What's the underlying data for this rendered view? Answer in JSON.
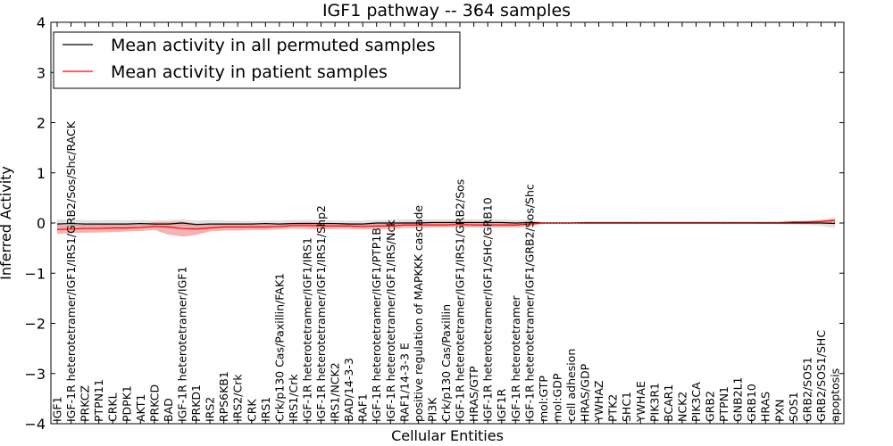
{
  "chart_data": {
    "type": "line",
    "title": "IGF1 pathway -- 364 samples",
    "xlabel": "Cellular Entities",
    "ylabel": "Inferred Activity",
    "ylim": [
      -4,
      4
    ],
    "yticks": [
      "4",
      "3",
      "2",
      "1",
      "0",
      "−1",
      "−2",
      "−3",
      "−4"
    ],
    "grid": false,
    "legend": {
      "position": "top-left"
    },
    "categories": [
      "IGF1",
      "IGF-1R heterotetramer/IGF1/IRS1/GRB2/Sos/Shc/RACK",
      "PRKCZ",
      "PTPN11",
      "CRKL",
      "PDPK1",
      "AKT1",
      "PRKCD",
      "BAD",
      "IGF-1R heterotetramer/IGF1",
      "PRKD1",
      "IRS2",
      "RPS6KB1",
      "IRS2/Crk",
      "CRK",
      "IRS1",
      "Crk/p130 Cas/Paxillin/FAK1",
      "IRS1/Crk",
      "IGF-1R heterotetramer/IGF1/IRS1",
      "IGF-1R heterotetramer/IGF1/IRS1/Shp2",
      "IRS1/NCK2",
      "BAD/14-3-3",
      "RAF1",
      "IGF-1R heterotetramer/IGF1/PTP1B",
      "IGF-1R heterotetramer/IGF1/IRS/Nck",
      "RAF1/14-3-3 E",
      "positive regulation of MAPKKK cascade",
      "PI3K",
      "Crk/p130 Cas/Paxillin",
      "IGF-1R heterotetramer/IGF1/IRS1/GRB2/Sos",
      "HRAS/GTP",
      "IGF-1R heterotetramer/IGF1/SHC/GRB10",
      "IGF1R",
      "IGF-1R heterotetramer",
      "IGF-1R heterotetramer/IGF1/GRB2/Sos/Shc",
      "mol:GTP",
      "mol:GDP",
      "cell adhesion",
      "HRAS/GDP",
      "YWHAZ",
      "PTK2",
      "SHC1",
      "YWHAE",
      "PIK3R1",
      "BCAR1",
      "NCK2",
      "PIK3CA",
      "GRB2",
      "PTPN1",
      "GNB2L1",
      "GRB10",
      "HRAS",
      "PXN",
      "SOS1",
      "GRB2/SOS1",
      "GRB2/SOS1/SHC",
      "apoptosis"
    ],
    "series": [
      {
        "name": "Mean activity in all permuted samples",
        "color": "#000000",
        "band_color": "#c8c8c8",
        "values": [
          -0.02,
          -0.01,
          -0.02,
          -0.02,
          -0.02,
          -0.02,
          -0.01,
          -0.02,
          -0.02,
          0.0,
          -0.03,
          -0.02,
          -0.02,
          -0.02,
          -0.02,
          -0.01,
          -0.02,
          -0.01,
          -0.01,
          -0.01,
          -0.01,
          -0.02,
          -0.02,
          0.0,
          0.0,
          0.0,
          0.0,
          0.01,
          0.01,
          0.01,
          0.01,
          0.01,
          0.01,
          0.0,
          0.01,
          0.0,
          0.0,
          0.0,
          0.0,
          0.0,
          0.0,
          0.0,
          0.0,
          0.0,
          0.0,
          0.0,
          0.0,
          0.0,
          0.0,
          0.0,
          0.0,
          0.0,
          0.0,
          0.0,
          0.0,
          0.0,
          -0.01
        ],
        "lower": [
          -0.11,
          -0.09,
          -0.1,
          -0.09,
          -0.1,
          -0.09,
          -0.08,
          -0.09,
          -0.1,
          -0.07,
          -0.11,
          -0.1,
          -0.09,
          -0.09,
          -0.08,
          -0.07,
          -0.09,
          -0.08,
          -0.07,
          -0.07,
          -0.07,
          -0.08,
          -0.09,
          -0.06,
          -0.05,
          -0.05,
          -0.05,
          -0.04,
          -0.04,
          -0.04,
          -0.04,
          -0.04,
          -0.04,
          -0.04,
          -0.04,
          -0.01,
          -0.01,
          -0.01,
          -0.01,
          -0.01,
          -0.01,
          -0.01,
          -0.01,
          -0.01,
          -0.01,
          -0.01,
          -0.01,
          -0.01,
          -0.01,
          -0.01,
          -0.01,
          -0.02,
          -0.02,
          -0.03,
          -0.04,
          -0.06,
          -0.1
        ],
        "upper": [
          0.07,
          0.07,
          0.06,
          0.05,
          0.06,
          0.05,
          0.06,
          0.05,
          0.06,
          0.07,
          0.05,
          0.06,
          0.05,
          0.05,
          0.04,
          0.05,
          0.05,
          0.06,
          0.06,
          0.06,
          0.05,
          0.05,
          0.05,
          0.06,
          0.06,
          0.07,
          0.07,
          0.07,
          0.07,
          0.07,
          0.07,
          0.07,
          0.07,
          0.06,
          0.07,
          0.01,
          0.01,
          0.01,
          0.01,
          0.01,
          0.01,
          0.01,
          0.01,
          0.01,
          0.01,
          0.01,
          0.01,
          0.01,
          0.01,
          0.01,
          0.01,
          0.02,
          0.02,
          0.03,
          0.04,
          0.05,
          0.08
        ]
      },
      {
        "name": "Mean activity in patient samples",
        "color": "#ff0000",
        "band_color": "#f08080",
        "values": [
          -0.13,
          -0.12,
          -0.11,
          -0.11,
          -0.1,
          -0.1,
          -0.09,
          -0.07,
          -0.08,
          -0.11,
          -0.12,
          -0.1,
          -0.08,
          -0.08,
          -0.08,
          -0.08,
          -0.07,
          -0.05,
          -0.05,
          -0.06,
          -0.06,
          -0.06,
          -0.07,
          -0.06,
          -0.06,
          -0.04,
          -0.04,
          -0.04,
          -0.04,
          -0.03,
          -0.04,
          -0.04,
          -0.04,
          -0.04,
          -0.02,
          0.0,
          0.0,
          0.0,
          0.01,
          0.01,
          0.01,
          0.01,
          0.01,
          0.01,
          0.01,
          0.01,
          0.01,
          0.01,
          0.01,
          0.01,
          0.01,
          0.01,
          0.01,
          0.02,
          0.02,
          0.03,
          0.05
        ],
        "lower": [
          -0.22,
          -0.2,
          -0.19,
          -0.19,
          -0.18,
          -0.17,
          -0.16,
          -0.14,
          -0.23,
          -0.27,
          -0.24,
          -0.17,
          -0.15,
          -0.15,
          -0.14,
          -0.14,
          -0.13,
          -0.11,
          -0.12,
          -0.13,
          -0.12,
          -0.12,
          -0.13,
          -0.12,
          -0.12,
          -0.1,
          -0.1,
          -0.09,
          -0.09,
          -0.08,
          -0.09,
          -0.09,
          -0.09,
          -0.09,
          -0.07,
          -0.01,
          -0.01,
          -0.01,
          0.0,
          0.0,
          0.0,
          0.0,
          0.0,
          0.0,
          0.0,
          0.0,
          0.0,
          0.0,
          0.0,
          0.0,
          0.0,
          0.0,
          0.0,
          0.0,
          0.0,
          0.01,
          0.01
        ],
        "upper": [
          -0.04,
          -0.04,
          -0.03,
          -0.03,
          -0.02,
          -0.03,
          -0.02,
          0.02,
          0.02,
          0.03,
          -0.01,
          -0.03,
          -0.01,
          -0.01,
          -0.02,
          -0.02,
          -0.01,
          0.01,
          0.02,
          0.01,
          0.0,
          0.0,
          -0.01,
          0.0,
          0.0,
          0.02,
          0.02,
          0.02,
          0.02,
          0.03,
          0.02,
          0.02,
          0.02,
          0.01,
          0.03,
          0.01,
          0.01,
          0.01,
          0.02,
          0.02,
          0.02,
          0.02,
          0.02,
          0.02,
          0.02,
          0.02,
          0.02,
          0.02,
          0.02,
          0.02,
          0.02,
          0.02,
          0.02,
          0.03,
          0.04,
          0.06,
          0.1
        ]
      }
    ]
  }
}
